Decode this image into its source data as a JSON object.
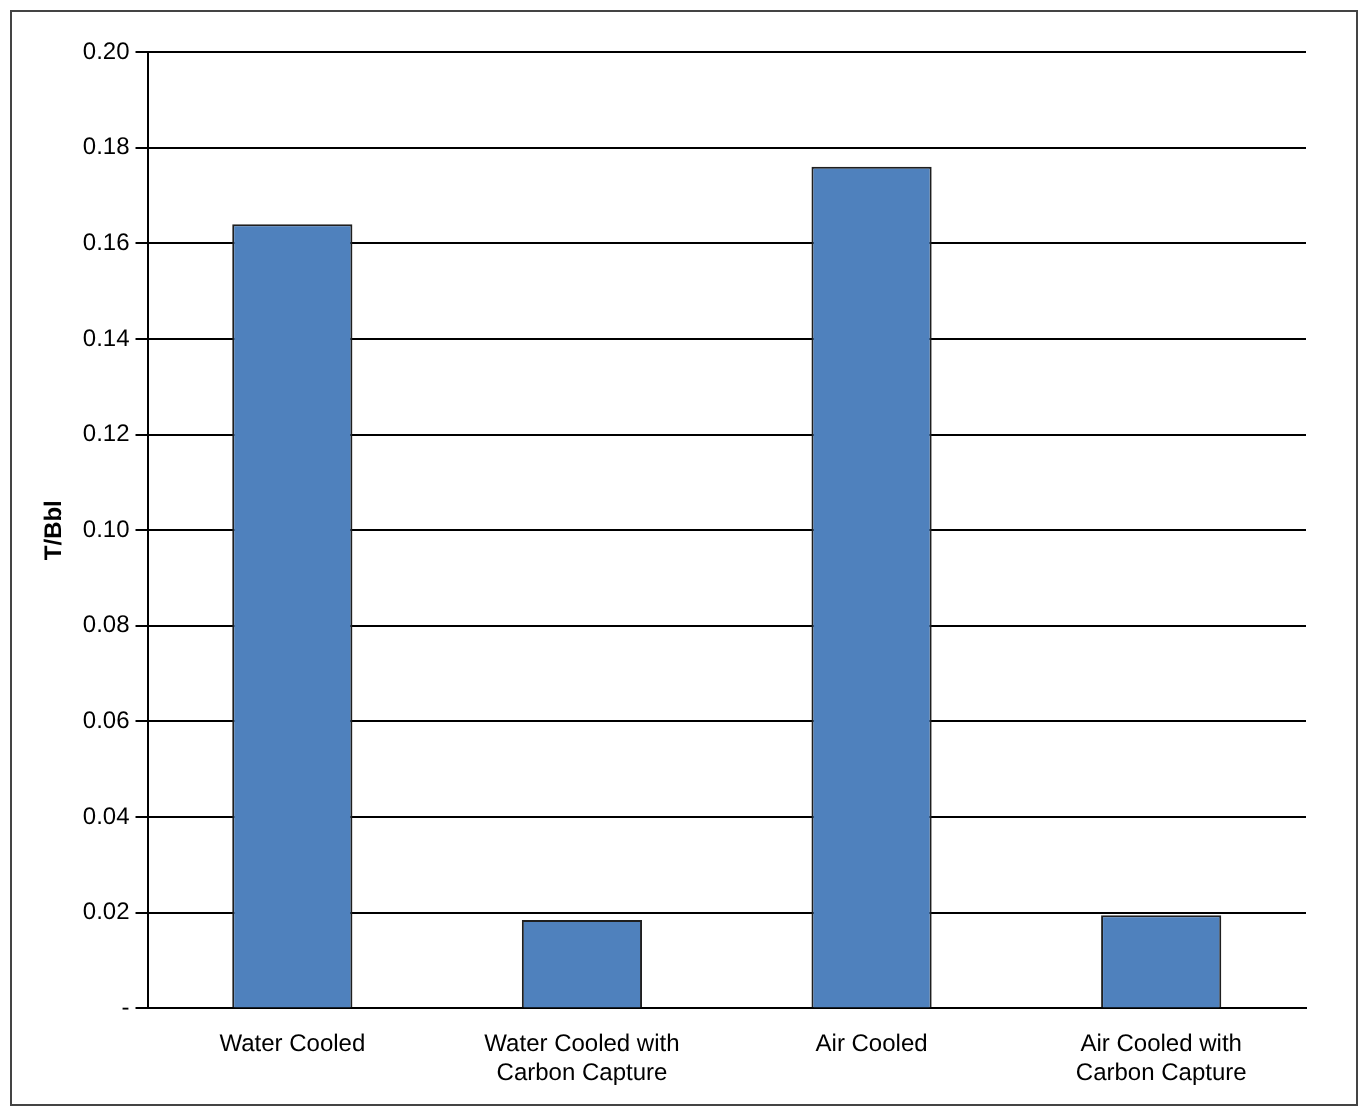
{
  "chart_data": {
    "type": "bar",
    "ylabel": "T/Bbl",
    "categories": [
      "Water Cooled",
      "Water Cooled with Carbon Capture",
      "Air Cooled",
      "Air Cooled with Carbon Capture"
    ],
    "values": [
      0.164,
      0.0185,
      0.176,
      0.0195
    ],
    "color": "#4f81bd",
    "ylim": [
      0,
      0.2
    ],
    "yticks": [
      {
        "value": 0,
        "label": "-"
      },
      0.02,
      0.04,
      0.06,
      0.08,
      {
        "value": 0.1,
        "label": "0.10"
      },
      0.12,
      0.14,
      0.16,
      0.18,
      {
        "value": 0.2,
        "label": "0.20"
      }
    ],
    "grid": "y",
    "legend": false
  }
}
